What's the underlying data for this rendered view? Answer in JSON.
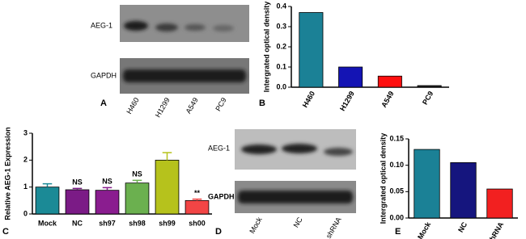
{
  "blot_a": {
    "panel_label": "A",
    "rows": [
      "AEG-1",
      "GAPDH"
    ],
    "lanes": [
      "H460",
      "H1299",
      "A549",
      "PC9"
    ]
  },
  "blot_d": {
    "panel_label": "D",
    "rows": [
      "AEG-1",
      "GAPDH"
    ],
    "lanes": [
      "Mock",
      "NC",
      "shRNA"
    ]
  },
  "chart_data": [
    {
      "type": "bar",
      "panel_label": "B",
      "y_label": "Intergrated optical density",
      "categories": [
        "H460",
        "H1299",
        "A549",
        "PC9"
      ],
      "values": [
        0.37,
        0.1,
        0.055,
        0.008
      ],
      "colors": [
        "#1b8196",
        "#1414b4",
        "#ff0f0f",
        "#222222"
      ],
      "ylim": [
        0,
        0.4
      ],
      "yticks": [
        {
          "value": 0,
          "label": "0.0"
        },
        0.1,
        0.2,
        0.3,
        0.4
      ],
      "rotate_categories": true
    },
    {
      "type": "bar",
      "panel_label": "C",
      "y_label": "Relative AEG-1 Expression",
      "categories": [
        "Mock",
        "NC",
        "sh97",
        "sh98",
        "sh99",
        "sh00"
      ],
      "values": [
        1.0,
        0.9,
        0.88,
        1.15,
        2.0,
        0.5
      ],
      "errors": [
        0.12,
        0.05,
        0.1,
        0.1,
        0.28,
        0.05
      ],
      "annotations": [
        null,
        "NS",
        "NS",
        "NS",
        null,
        "**"
      ],
      "colors": [
        "#1b8a96",
        "#7b1b86",
        "#8a1d8f",
        "#6bb04f",
        "#b6c21c",
        "#f24545"
      ],
      "ylim": [
        0,
        3
      ],
      "yticks": [
        0,
        1,
        2,
        3
      ],
      "rotate_categories": false
    },
    {
      "type": "bar",
      "panel_label": "E",
      "y_label": "Intergrated optical density",
      "categories": [
        "Mock",
        "NC",
        "shRNA"
      ],
      "values": [
        0.13,
        0.105,
        0.055
      ],
      "colors": [
        "#1b8196",
        "#15157e",
        "#f22020"
      ],
      "ylim": [
        0,
        0.15
      ],
      "yticks": [
        {
          "value": 0,
          "label": "0.00"
        },
        {
          "value": 0.05,
          "label": "0.05"
        },
        {
          "value": 0.1,
          "label": "0.10"
        },
        {
          "value": 0.15,
          "label": "0.15"
        }
      ],
      "rotate_categories": true
    }
  ]
}
